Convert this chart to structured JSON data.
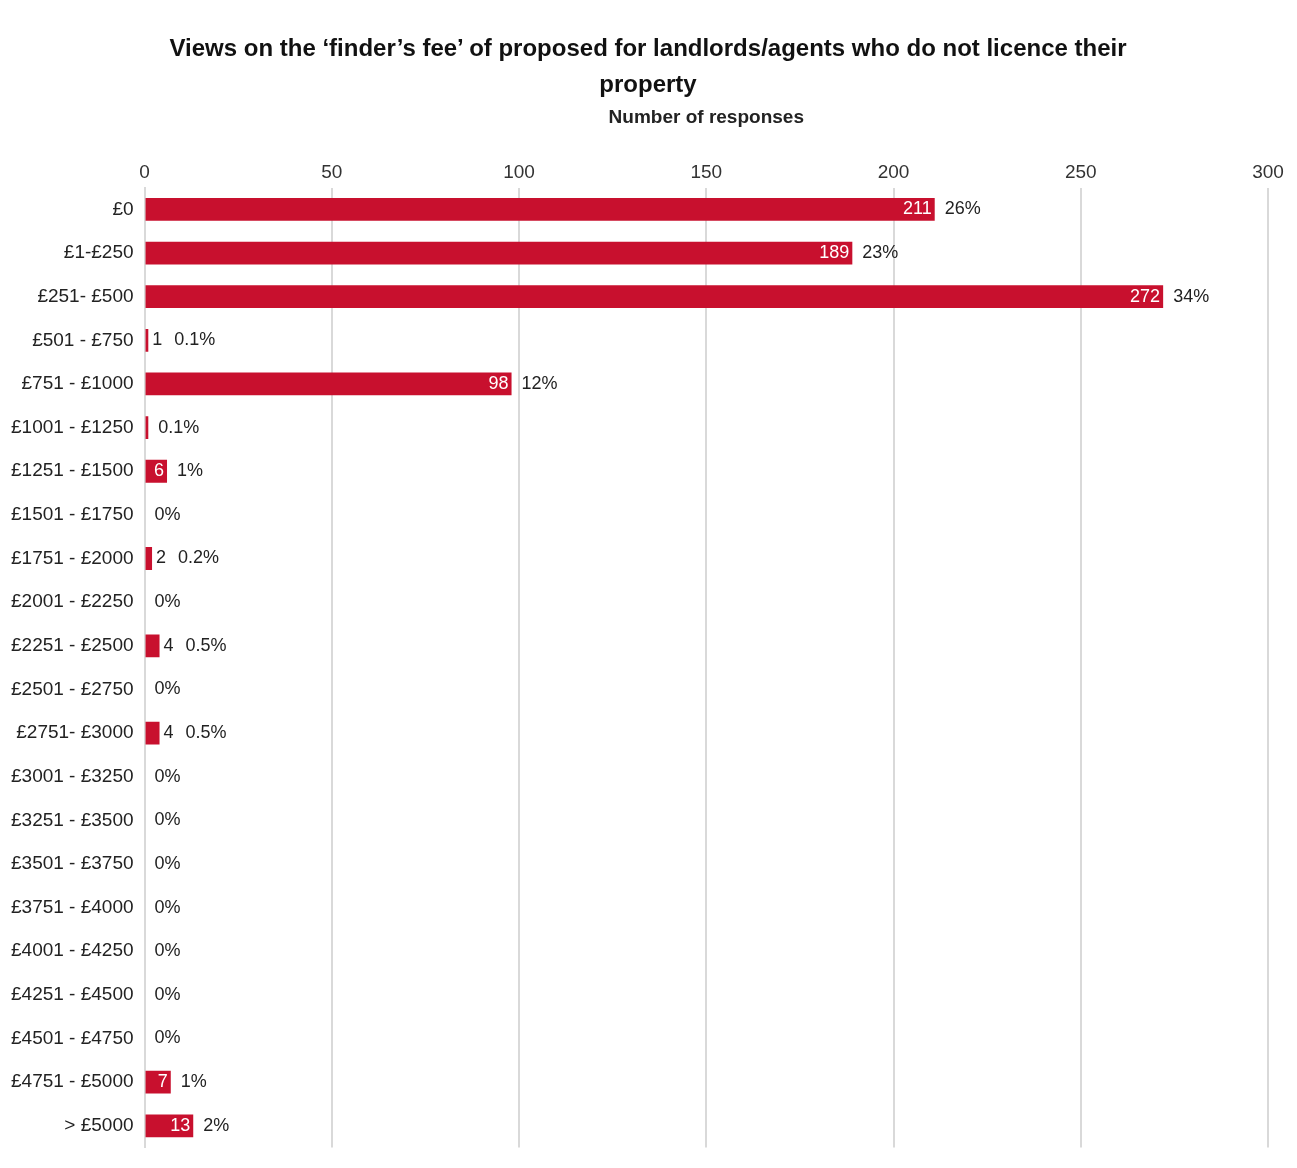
{
  "chart_data": {
    "type": "bar",
    "orientation": "horizontal",
    "title": "Views on the ‘finder’s fee’ of proposed for landlords/agents who do not licence their property",
    "xlabel": "Number of responses",
    "categories": [
      "£0",
      "£1-£250",
      "£251- £500",
      "£501 - £750",
      "£751 - £1000",
      "£1001 - £1250",
      "£1251 - £1500",
      "£1501 - £1750",
      "£1751 - £2000",
      "£2001 - £2250",
      "£2251 - £2500",
      "£2501 - £2750",
      "£2751- £3000",
      "£3001 - £3250",
      "£3251 - £3500",
      "£3501 - £3750",
      "£3751 - £4000",
      "£4001 - £4250",
      "£4251 - £4500",
      "£4501 - £4750",
      "£4751 - £5000",
      "> £5000"
    ],
    "values": [
      211,
      189,
      272,
      1,
      98,
      1,
      6,
      0,
      2,
      0,
      4,
      0,
      4,
      0,
      0,
      0,
      0,
      0,
      0,
      0,
      7,
      13
    ],
    "value_labels": [
      "211",
      "189",
      "272",
      "1",
      "98",
      null,
      "6",
      null,
      "2",
      null,
      "4",
      null,
      "4",
      null,
      null,
      null,
      null,
      null,
      null,
      null,
      "7",
      "13"
    ],
    "color": "#c8102e",
    "xlim": [
      0,
      300
    ],
    "xticks": [
      0,
      50,
      100,
      150,
      200,
      250,
      300
    ],
    "grid": "x",
    "legend": false,
    "annotations": [
      {
        "text": "26%",
        "x": 211,
        "y": "£0"
      },
      {
        "text": "23%",
        "x": 189,
        "y": "£1-£250"
      },
      {
        "text": "34%",
        "x": 272,
        "y": "£251- £500"
      },
      {
        "text": "0.1%",
        "x": 1,
        "y": "£501 - £750"
      },
      {
        "text": "12%",
        "x": 98,
        "y": "£751 - £1000"
      },
      {
        "text": "0.1%",
        "x": 1,
        "y": "£1001 - £1250"
      },
      {
        "text": "1%",
        "x": 6,
        "y": "£1251 - £1500"
      },
      {
        "text": "0%",
        "x": 0,
        "y": "£1501 - £1750"
      },
      {
        "text": "0.2%",
        "x": 2,
        "y": "£1751 - £2000"
      },
      {
        "text": "0%",
        "x": 0,
        "y": "£2001 - £2250"
      },
      {
        "text": "0.5%",
        "x": 4,
        "y": "£2251 - £2500"
      },
      {
        "text": "0%",
        "x": 0,
        "y": "£2501 - £2750"
      },
      {
        "text": "0.5%",
        "x": 4,
        "y": "£2751- £3000"
      },
      {
        "text": "0%",
        "x": 0,
        "y": "£3001 - £3250"
      },
      {
        "text": "0%",
        "x": 0,
        "y": "£3251 - £3500"
      },
      {
        "text": "0%",
        "x": 0,
        "y": "£3501 - £3750"
      },
      {
        "text": "0%",
        "x": 0,
        "y": "£3751 - £4000"
      },
      {
        "text": "0%",
        "x": 0,
        "y": "£4001 - £4250"
      },
      {
        "text": "0%",
        "x": 0,
        "y": "£4251 - £4500"
      },
      {
        "text": "0%",
        "x": 0,
        "y": "£4501 - £4750"
      },
      {
        "text": "1%",
        "x": 7,
        "y": "£4751 - £5000"
      },
      {
        "text": "2%",
        "x": 13,
        "y": "> £5000"
      }
    ]
  }
}
